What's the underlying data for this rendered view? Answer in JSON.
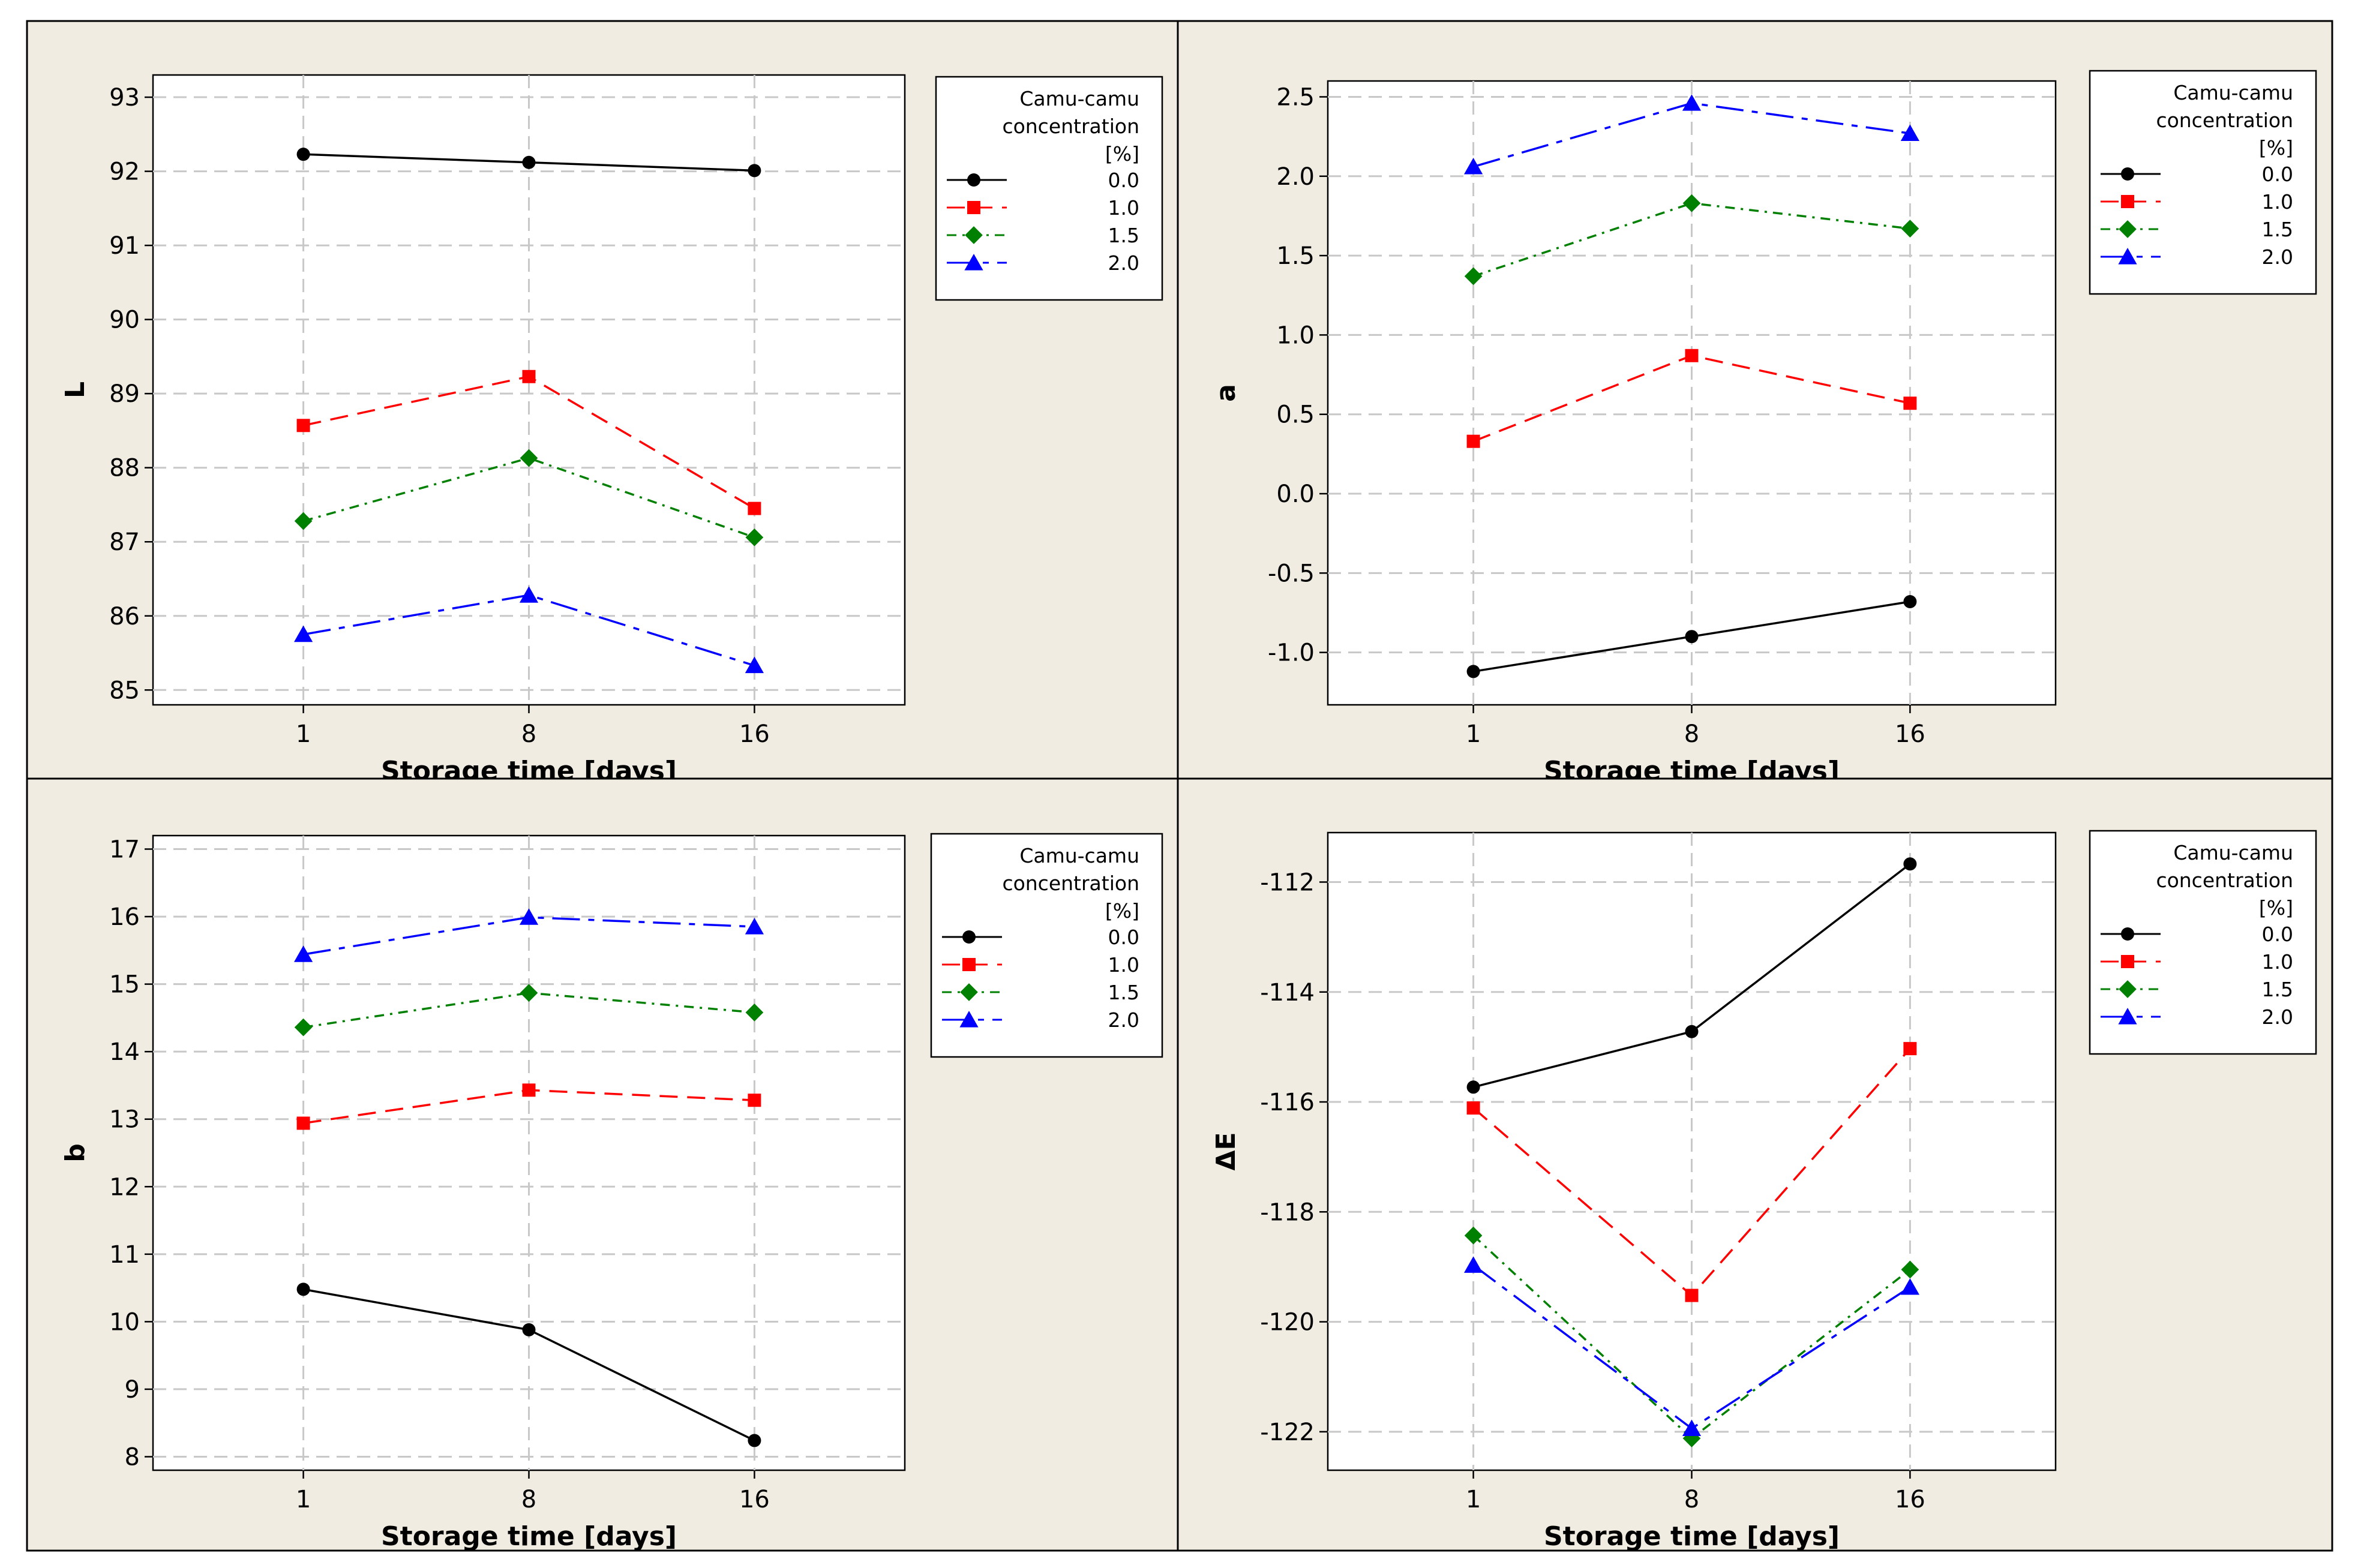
{
  "chart_data": [
    {
      "type": "line",
      "xlabel": "Storage time [days]",
      "ylabel": "L",
      "categories": [
        "1",
        "8",
        "16"
      ],
      "yticks": [
        85,
        86,
        87,
        88,
        89,
        90,
        91,
        92,
        93
      ],
      "ylim": [
        84.8,
        93.3
      ],
      "grid": true,
      "legend": {
        "title": [
          "Camu-camu",
          "concentration",
          "[%]"
        ],
        "placement": "right"
      },
      "series": [
        {
          "name": "0.0",
          "color": "#000000",
          "marker": "circle",
          "dash": "solid",
          "values": [
            92.23,
            92.12,
            92.01
          ]
        },
        {
          "name": "1.0",
          "color": "#ff0000",
          "marker": "square",
          "dash": "dashed",
          "values": [
            88.57,
            89.23,
            87.45
          ]
        },
        {
          "name": "1.5",
          "color": "#008000",
          "marker": "diamond",
          "dash": "dotdash-fine",
          "values": [
            87.28,
            88.13,
            87.06
          ]
        },
        {
          "name": "2.0",
          "color": "#0000ff",
          "marker": "triangle",
          "dash": "dashdot",
          "values": [
            85.75,
            86.28,
            85.33
          ]
        }
      ]
    },
    {
      "type": "line",
      "xlabel": "Storage time [days]",
      "ylabel": "a",
      "categories": [
        "1",
        "8",
        "16"
      ],
      "yticks": [
        -1.0,
        -0.5,
        0.0,
        0.5,
        1.0,
        1.5,
        2.0,
        2.5
      ],
      "yticklabels": [
        "-1.0",
        "-0.5",
        "0.0",
        "0.5",
        "1.0",
        "1.5",
        "2.0",
        "2.5"
      ],
      "ylim": [
        -1.33,
        2.6
      ],
      "grid": true,
      "legend": {
        "title": [
          "Camu-camu",
          "concentration",
          "[%]"
        ],
        "placement": "right"
      },
      "series": [
        {
          "name": "0.0",
          "color": "#000000",
          "marker": "circle",
          "dash": "solid",
          "values": [
            -1.12,
            -0.9,
            -0.68
          ]
        },
        {
          "name": "1.0",
          "color": "#ff0000",
          "marker": "square",
          "dash": "dashed",
          "values": [
            0.33,
            0.87,
            0.57
          ]
        },
        {
          "name": "1.5",
          "color": "#008000",
          "marker": "diamond",
          "dash": "dotdash-fine",
          "values": [
            1.37,
            1.83,
            1.67
          ]
        },
        {
          "name": "2.0",
          "color": "#0000ff",
          "marker": "triangle",
          "dash": "dashdot",
          "values": [
            2.06,
            2.46,
            2.27
          ]
        }
      ]
    },
    {
      "type": "line",
      "xlabel": "Storage time [days]",
      "ylabel": "b",
      "categories": [
        "1",
        "8",
        "16"
      ],
      "yticks": [
        8,
        9,
        10,
        11,
        12,
        13,
        14,
        15,
        16,
        17
      ],
      "ylim": [
        7.8,
        17.2
      ],
      "grid": true,
      "legend": {
        "title": [
          "Camu-camu",
          "concentration",
          "[%]"
        ],
        "placement": "right"
      },
      "series": [
        {
          "name": "0.0",
          "color": "#000000",
          "marker": "circle",
          "dash": "solid",
          "values": [
            10.48,
            9.88,
            8.24
          ]
        },
        {
          "name": "1.0",
          "color": "#ff0000",
          "marker": "square",
          "dash": "dashed",
          "values": [
            12.94,
            13.43,
            13.28
          ]
        },
        {
          "name": "1.5",
          "color": "#008000",
          "marker": "diamond",
          "dash": "dotdash-fine",
          "values": [
            14.36,
            14.87,
            14.58
          ]
        },
        {
          "name": "2.0",
          "color": "#0000ff",
          "marker": "triangle",
          "dash": "dashdot",
          "values": [
            15.44,
            15.99,
            15.85
          ]
        }
      ]
    },
    {
      "type": "line",
      "xlabel": "Storage time [days]",
      "ylabel": "ΔE",
      "categories": [
        "1",
        "8",
        "16"
      ],
      "yticks": [
        -122,
        -120,
        -118,
        -116,
        -114,
        -112
      ],
      "ylim": [
        -122.7,
        -111.1
      ],
      "grid": true,
      "legend": {
        "title": [
          "Camu-camu",
          "concentration",
          "[%]"
        ],
        "placement": "right"
      },
      "series": [
        {
          "name": "0.0",
          "color": "#000000",
          "marker": "circle",
          "dash": "solid",
          "values": [
            -115.73,
            -114.72,
            -111.67
          ]
        },
        {
          "name": "1.0",
          "color": "#ff0000",
          "marker": "square",
          "dash": "dashed",
          "values": [
            -116.11,
            -119.52,
            -115.03
          ]
        },
        {
          "name": "1.5",
          "color": "#008000",
          "marker": "diamond",
          "dash": "dotdash-fine",
          "values": [
            -118.43,
            -122.12,
            -119.05
          ]
        },
        {
          "name": "2.0",
          "color": "#0000ff",
          "marker": "triangle",
          "dash": "dashdot",
          "values": [
            -118.97,
            -121.94,
            -119.37
          ]
        }
      ]
    }
  ]
}
